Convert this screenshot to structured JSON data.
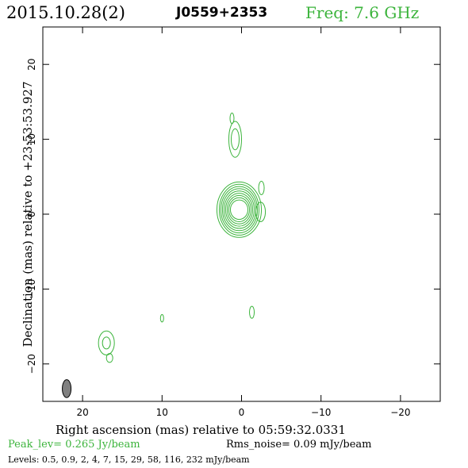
{
  "header": {
    "date": "2015.10.28(2)",
    "source": "J0559+2353",
    "freq": "Freq: 7.6 GHz"
  },
  "footer": {
    "peak": "Peak_lev=  0.265 Jy/beam",
    "rms": "Rms_noise= 0.09 mJy/beam",
    "levels": "Levels: 0.5, 0.9,   2,   4,   7,  15,  29,  58, 116, 232 mJy/beam"
  },
  "colors": {
    "contour": "#3cb43c",
    "peak_text": "#3cb43c",
    "freq_text": "#3cb43c",
    "beam_fill": "#808080"
  },
  "chart_data": {
    "type": "contour",
    "xlabel": "Right ascension (mas) relative to 05:59:32.0331",
    "ylabel": "Declination (mas) relative to +23:53:53.927",
    "xlim": [
      25,
      -25
    ],
    "ylim": [
      -25,
      25
    ],
    "xticks": [
      20,
      10,
      0,
      -10,
      -20
    ],
    "yticks": [
      20,
      10,
      0,
      -10,
      -20
    ],
    "xtick_labels": [
      "20",
      "10",
      "0",
      "−10",
      "−20"
    ],
    "ytick_labels": [
      "20",
      "10",
      "0",
      "−10",
      "−20"
    ],
    "levels_mJy": [
      0.5,
      0.9,
      2,
      4,
      7,
      15,
      29,
      58,
      116,
      232
    ],
    "components": [
      {
        "x": 0.3,
        "y": 0.6,
        "rx": [
          1.1,
          1.3,
          1.5,
          1.7,
          1.9,
          2.1,
          2.3,
          2.5,
          2.8
        ],
        "ry": [
          1.3,
          1.6,
          1.9,
          2.2,
          2.5,
          2.8,
          3.1,
          3.4,
          3.7
        ]
      },
      {
        "x": 0.8,
        "y": 10.0,
        "rx": [
          0.5,
          0.8
        ],
        "ry": [
          1.4,
          2.4
        ]
      },
      {
        "x": 1.2,
        "y": 12.8,
        "rx": [
          0.25
        ],
        "ry": [
          0.7
        ]
      },
      {
        "x": 17.0,
        "y": -17.2,
        "rx": [
          0.5,
          1.0
        ],
        "ry": [
          0.8,
          1.6
        ]
      },
      {
        "x": 16.6,
        "y": -19.2,
        "rx": [
          0.4
        ],
        "ry": [
          0.6
        ]
      },
      {
        "x": 10.0,
        "y": -13.9,
        "rx": [
          0.2
        ],
        "ry": [
          0.5
        ]
      },
      {
        "x": -1.3,
        "y": -13.1,
        "rx": [
          0.3
        ],
        "ry": [
          0.8
        ]
      },
      {
        "x": -2.4,
        "y": 0.3,
        "rx": [
          0.6
        ],
        "ry": [
          1.3
        ]
      },
      {
        "x": -2.5,
        "y": 3.5,
        "rx": [
          0.35
        ],
        "ry": [
          0.9
        ]
      }
    ],
    "beam": {
      "x": 22.0,
      "y": -23.3,
      "major": 2.4,
      "minor": 1.1,
      "pa": 0
    }
  }
}
